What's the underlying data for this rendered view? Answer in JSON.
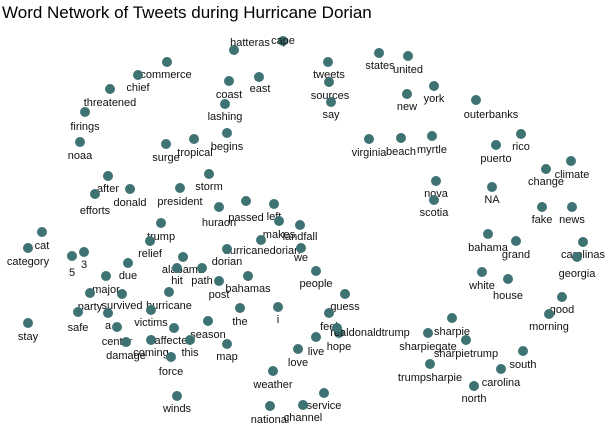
{
  "title": "Word Network of Tweets during Hurricane Dorian",
  "colors": {
    "node": "#3f7373",
    "label": "#111111",
    "background": "#ffffff"
  },
  "nodes": [
    {
      "label": "hatteras"
    },
    {
      "label": "cape"
    },
    {
      "label": "tweets"
    },
    {
      "label": "states"
    },
    {
      "label": "united"
    },
    {
      "label": "commerce"
    },
    {
      "label": "chief"
    },
    {
      "label": "coast"
    },
    {
      "label": "east"
    },
    {
      "label": "sources"
    },
    {
      "label": "york"
    },
    {
      "label": "new"
    },
    {
      "label": "outerbanks"
    },
    {
      "label": "threatened"
    },
    {
      "label": "lashing"
    },
    {
      "label": "say"
    },
    {
      "label": "firings"
    },
    {
      "label": "begins"
    },
    {
      "label": "virginia"
    },
    {
      "label": "beach"
    },
    {
      "label": "myrtle"
    },
    {
      "label": "rico"
    },
    {
      "label": "puerto"
    },
    {
      "label": "noaa"
    },
    {
      "label": "surge"
    },
    {
      "label": "tropical"
    },
    {
      "label": "climate"
    },
    {
      "label": "change"
    },
    {
      "label": "after"
    },
    {
      "label": "storm"
    },
    {
      "label": "donald"
    },
    {
      "label": "president"
    },
    {
      "label": "nova"
    },
    {
      "label": "NA"
    },
    {
      "label": "scotia"
    },
    {
      "label": "efforts"
    },
    {
      "label": "fake"
    },
    {
      "label": "news"
    },
    {
      "label": "left"
    },
    {
      "label": "passed"
    },
    {
      "label": "huraon"
    },
    {
      "label": "landfall"
    },
    {
      "label": "makes"
    },
    {
      "label": "trump"
    },
    {
      "label": "cat"
    },
    {
      "label": "bahama"
    },
    {
      "label": "grand"
    },
    {
      "label": "carolinas"
    },
    {
      "label": "relief"
    },
    {
      "label": "hurricanedorian"
    },
    {
      "label": "category"
    },
    {
      "label": "3"
    },
    {
      "label": "5"
    },
    {
      "label": "dorian"
    },
    {
      "label": "we"
    },
    {
      "label": "georgia"
    },
    {
      "label": "alabama"
    },
    {
      "label": "due"
    },
    {
      "label": "hit"
    },
    {
      "label": "path"
    },
    {
      "label": "people"
    },
    {
      "label": "white"
    },
    {
      "label": "major"
    },
    {
      "label": "bahamas"
    },
    {
      "label": "house"
    },
    {
      "label": "post"
    },
    {
      "label": "party"
    },
    {
      "label": "survived"
    },
    {
      "label": "guess"
    },
    {
      "label": "hurricane"
    },
    {
      "label": "good"
    },
    {
      "label": "stay"
    },
    {
      "label": "safe"
    },
    {
      "label": "a"
    },
    {
      "label": "the"
    },
    {
      "label": "i"
    },
    {
      "label": "victims"
    },
    {
      "label": "feel"
    },
    {
      "label": "morning"
    },
    {
      "label": "sharpie"
    },
    {
      "label": "center"
    },
    {
      "label": "realdonaldtrump"
    },
    {
      "label": "season"
    },
    {
      "label": "affected"
    },
    {
      "label": "sharpiegate"
    },
    {
      "label": "damage"
    },
    {
      "label": "coming"
    },
    {
      "label": "hope"
    },
    {
      "label": "this"
    },
    {
      "label": "sharpietrump"
    },
    {
      "label": "live"
    },
    {
      "label": "map"
    },
    {
      "label": "love"
    },
    {
      "label": "south"
    },
    {
      "label": "force"
    },
    {
      "label": "trumpsharpie"
    },
    {
      "label": "carolina"
    },
    {
      "label": "weather"
    },
    {
      "label": "north"
    },
    {
      "label": "winds"
    },
    {
      "label": "service"
    },
    {
      "label": "national"
    },
    {
      "label": "channel"
    }
  ]
}
